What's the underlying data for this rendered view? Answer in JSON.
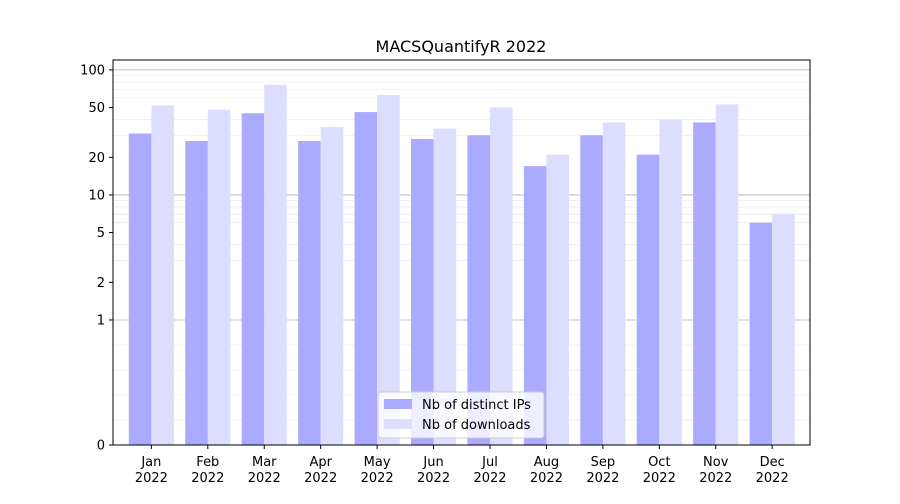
{
  "chart_data": {
    "type": "bar",
    "title": "MACSQuantifyR 2022",
    "xlabel": "",
    "ylabel": "",
    "y_scale": "symlog",
    "ylim": [
      0,
      120
    ],
    "yticks": [
      0,
      1,
      2,
      5,
      10,
      20,
      50,
      100
    ],
    "ytick_labels": [
      "0",
      "1",
      "2",
      "5",
      "10",
      "20",
      "50",
      "100"
    ],
    "grid": true,
    "legend_position": "bottom-center",
    "categories": [
      "Jan\n2022",
      "Feb\n2022",
      "Mar\n2022",
      "Apr\n2022",
      "May\n2022",
      "Jun\n2022",
      "Jul\n2022",
      "Aug\n2022",
      "Sep\n2022",
      "Oct\n2022",
      "Nov\n2022",
      "Dec\n2022"
    ],
    "series": [
      {
        "name": "Nb of distinct IPs",
        "color": "#aaaaff",
        "values": [
          31,
          27,
          45,
          27,
          46,
          28,
          30,
          17,
          30,
          21,
          38,
          6
        ]
      },
      {
        "name": "Nb of downloads",
        "color": "#ddddff",
        "values": [
          52,
          48,
          76,
          35,
          63,
          34,
          50,
          21,
          38,
          40,
          53,
          7
        ]
      }
    ]
  }
}
